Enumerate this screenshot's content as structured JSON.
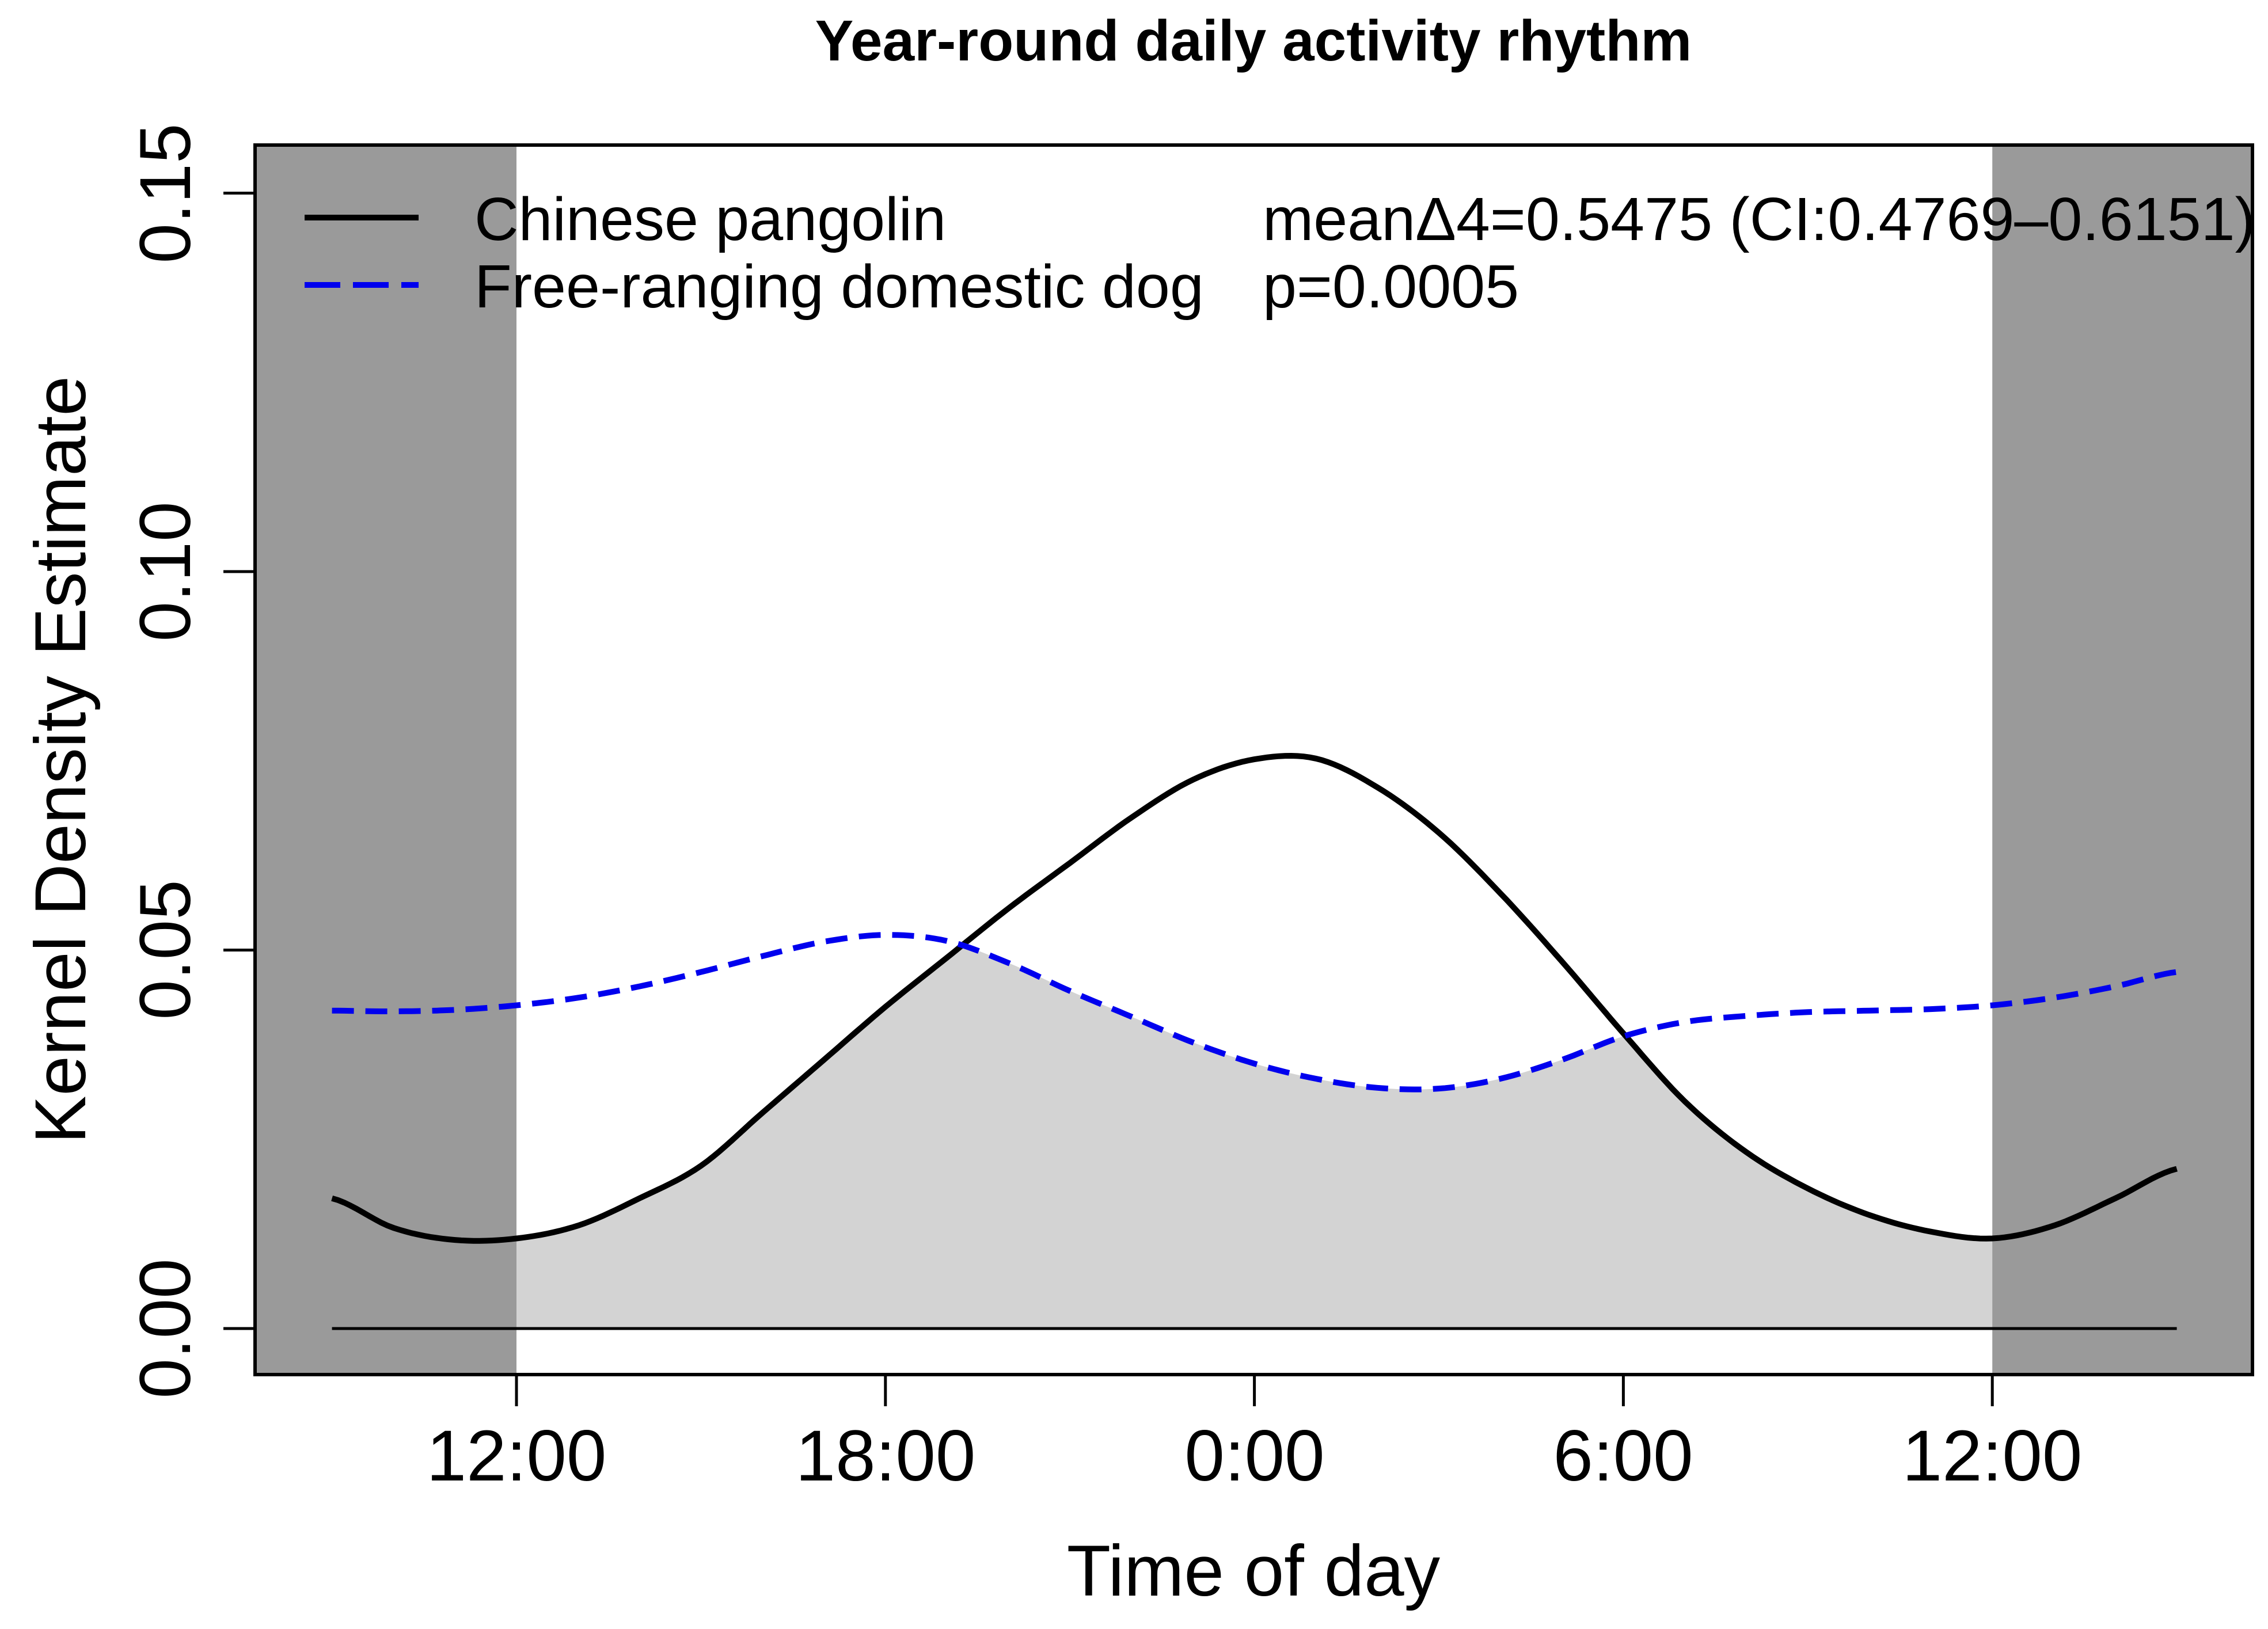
{
  "title": "Year-round daily activity rhythm",
  "axes": {
    "x_label": "Time of day",
    "y_label": "Kernel Density Estimate",
    "x_ticks": [
      "12:00",
      "18:00",
      "0:00",
      "6:00",
      "12:00"
    ],
    "y_ticks": [
      "0.00",
      "0.05",
      "0.10",
      "0.15"
    ]
  },
  "legend": {
    "items": [
      {
        "label": "Chinese pangolin",
        "line_style": "solid",
        "color": "#000000"
      },
      {
        "label": "Free-ranging domestic dog",
        "line_style": "dashed",
        "color": "#0000EE"
      }
    ]
  },
  "stats": {
    "line1": "meanΔ4=0.5475 (CI:0.4769–0.6151)",
    "line2": "p=0.0005"
  },
  "colors": {
    "pangolin_line": "#000000",
    "dog_line": "#0000EE",
    "extension_band": "#9A9A9A",
    "overlap_fill": "#D3D3D3",
    "axis": "#000000",
    "background": "#FFFFFF"
  },
  "chart_data": {
    "type": "line",
    "title": "Year-round daily activity rhythm",
    "xlabel": "Time of day",
    "ylabel": "Kernel Density Estimate",
    "x_units_note": "hours from midnight day 1; 12=12:00 noon, 24=0:00 midnight, 36=12:00 noon next day; curves extended 3 h beyond the noon-to-noon window",
    "xlim": [
      9,
      39
    ],
    "ylim": [
      0,
      0.15
    ],
    "x_tick_positions": [
      12,
      18,
      24,
      30,
      36
    ],
    "x_tick_labels": [
      "12:00",
      "18:00",
      "0:00",
      "6:00",
      "12:00"
    ],
    "y_tick_positions": [
      0,
      0.05,
      0.1,
      0.15
    ],
    "grid": false,
    "legend_position": "top-left inside plot",
    "shaded_extension_bands_hours": [
      [
        9,
        12
      ],
      [
        36,
        39
      ]
    ],
    "overlap_fill_rule": "light gray area under the pointwise minimum of the two density curves, down to density 0",
    "annotations": [
      "meanΔ4=0.5475 (CI:0.4769–0.6151)",
      "p=0.0005"
    ],
    "x": [
      9,
      10,
      11,
      12,
      13,
      14,
      15,
      16,
      17,
      18,
      19,
      20,
      21,
      22,
      23,
      24,
      25,
      26,
      27,
      28,
      29,
      30,
      31,
      32,
      33,
      34,
      35,
      36,
      37,
      38,
      39
    ],
    "series": [
      {
        "name": "Chinese pangolin",
        "style": "solid",
        "color": "#000000",
        "values": [
          0.0172,
          0.0133,
          0.0117,
          0.0119,
          0.0136,
          0.0172,
          0.0215,
          0.0285,
          0.0355,
          0.0425,
          0.049,
          0.0555,
          0.0615,
          0.0675,
          0.0725,
          0.0752,
          0.0753,
          0.0715,
          0.0655,
          0.0575,
          0.0485,
          0.039,
          0.03,
          0.0233,
          0.0185,
          0.015,
          0.0128,
          0.0119,
          0.0136,
          0.0172,
          0.0211
        ]
      },
      {
        "name": "Free-ranging domestic dog",
        "style": "dashed",
        "color": "#0000EE",
        "values": [
          0.042,
          0.0419,
          0.0421,
          0.0427,
          0.0437,
          0.0452,
          0.0471,
          0.0492,
          0.0511,
          0.052,
          0.0512,
          0.0483,
          0.0446,
          0.0412,
          0.0378,
          0.035,
          0.033,
          0.0318,
          0.0317,
          0.033,
          0.0355,
          0.0386,
          0.0405,
          0.0413,
          0.0418,
          0.042,
          0.0422,
          0.0427,
          0.0437,
          0.0452,
          0.0471
        ]
      }
    ]
  }
}
